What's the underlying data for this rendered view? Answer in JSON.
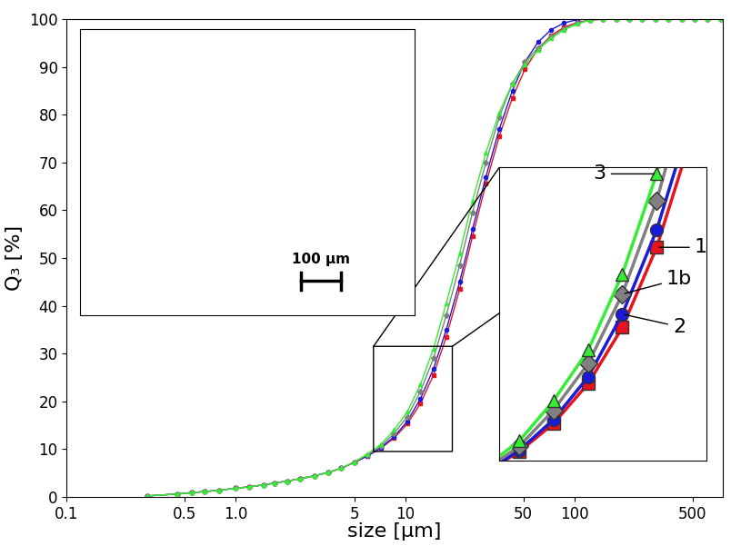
{
  "chart_data": {
    "type": "line",
    "x_label": "size [µm]",
    "y_label": "Q₃ [%]",
    "log": "x",
    "grid": false,
    "xlim": [
      0.1,
      750
    ],
    "ylim": [
      0,
      100
    ],
    "xticks": [
      0.1,
      0.5,
      {
        "value": 1,
        "label": "1.0"
      },
      5,
      10,
      50,
      100,
      500
    ],
    "yticks": [
      0,
      10,
      20,
      30,
      40,
      50,
      60,
      70,
      80,
      90,
      100
    ],
    "annotations": [
      "100 µm"
    ],
    "zoom": {
      "xlim": [
        6.5,
        19
      ],
      "ylim": [
        9.5,
        31.5
      ]
    },
    "x": [
      0.3,
      0.45,
      0.55,
      0.65,
      0.8,
      1.0,
      1.2,
      1.45,
      1.7,
      2.0,
      2.4,
      2.9,
      3.5,
      4.2,
      5.0,
      6.0,
      7.2,
      8.6,
      10.3,
      12.3,
      14.7,
      17.5,
      21,
      25,
      30,
      36,
      43,
      51,
      61,
      73,
      87,
      104,
      124,
      148,
      177,
      211,
      252,
      301,
      360,
      430,
      514,
      614,
      733
    ],
    "series": [
      {
        "name": "1",
        "color": "#e8131b",
        "marker": "square",
        "values": [
          0.2,
          0.6,
          0.9,
          1.1,
          1.4,
          1.8,
          2.1,
          2.5,
          2.9,
          3.3,
          3.8,
          4.4,
          5.1,
          6.0,
          7.2,
          8.6,
          10.2,
          12.3,
          15.3,
          19.5,
          25.5,
          33.5,
          43.5,
          54.5,
          65.5,
          75.5,
          83.5,
          89.5,
          93.8,
          96.6,
          98.3,
          99.3,
          99.8,
          100,
          100,
          100,
          100,
          100,
          100,
          100,
          100,
          100,
          100
        ]
      },
      {
        "name": "2",
        "color": "#1a1adb",
        "marker": "circle",
        "values": [
          0.2,
          0.6,
          0.9,
          1.1,
          1.4,
          1.8,
          2.1,
          2.5,
          2.9,
          3.3,
          3.8,
          4.4,
          5.1,
          6.0,
          7.2,
          8.6,
          10.3,
          12.6,
          15.8,
          20.5,
          26.8,
          35,
          45,
          56,
          67,
          77,
          85,
          91,
          95.2,
          97.8,
          99.2,
          99.9,
          100,
          100,
          100,
          100,
          100,
          100,
          100,
          100,
          100,
          100,
          100
        ]
      },
      {
        "name": "1b",
        "color": "#808080",
        "marker": "diamond",
        "values": [
          0.2,
          0.6,
          0.9,
          1.1,
          1.4,
          1.8,
          2.1,
          2.5,
          2.9,
          3.3,
          3.8,
          4.4,
          5.1,
          6.0,
          7.3,
          8.8,
          10.6,
          13.3,
          16.8,
          22,
          29,
          38,
          48.5,
          59.5,
          70,
          79.5,
          86.5,
          91,
          94,
          96.3,
          98,
          99.2,
          99.8,
          100,
          100,
          100,
          100,
          100,
          100,
          100,
          100,
          100,
          100
        ]
      },
      {
        "name": "3",
        "color": "#33ee33",
        "marker": "triangle",
        "values": [
          0.2,
          0.6,
          0.9,
          1.1,
          1.4,
          1.8,
          2.1,
          2.5,
          2.9,
          3.3,
          3.8,
          4.4,
          5.1,
          6.0,
          7.3,
          9.0,
          11.0,
          14.0,
          17.8,
          23.5,
          31,
          40.5,
          51,
          62,
          72,
          80.5,
          86.5,
          90.5,
          93.5,
          96,
          97.8,
          99,
          99.8,
          100,
          100,
          100,
          100,
          100,
          100,
          100,
          100,
          100,
          100
        ]
      }
    ]
  }
}
